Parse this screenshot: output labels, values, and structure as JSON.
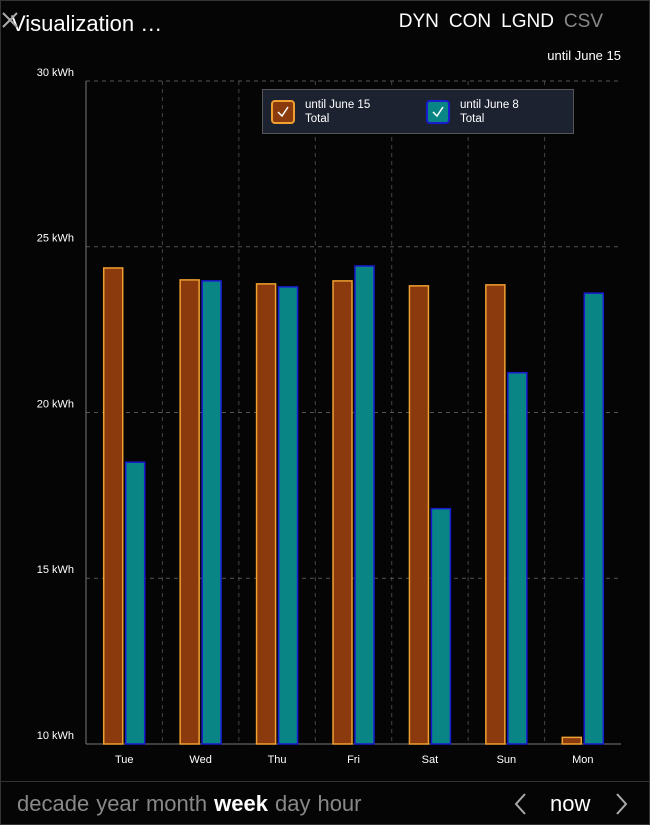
{
  "header": {
    "title": "Visualization …",
    "buttons": [
      "DYN",
      "CON",
      "LGND",
      "CSV"
    ]
  },
  "chart_data": {
    "type": "bar",
    "subtitle": "until June 15",
    "categories": [
      "Tue",
      "Wed",
      "Thu",
      "Fri",
      "Sat",
      "Sun",
      "Mon"
    ],
    "series": [
      {
        "name": "until June 15\nTotal",
        "color": "#8a3a0c",
        "edge": "#f0a030",
        "values": [
          24.36,
          24.0,
          23.88,
          23.97,
          23.82,
          23.85,
          10.2
        ]
      },
      {
        "name": "until June 8\nTotal",
        "color": "#0a8585",
        "edge": "#1a1ad0",
        "values": [
          18.5,
          23.97,
          23.79,
          24.42,
          17.1,
          21.2,
          23.6
        ]
      }
    ],
    "ylim": [
      10,
      30
    ],
    "yticks": [
      {
        "value": 10,
        "label": "10 kWh"
      },
      {
        "value": 15,
        "label": "15 kWh"
      },
      {
        "value": 20,
        "label": "20 kWh"
      },
      {
        "value": 25,
        "label": "25 kWh"
      },
      {
        "value": 30,
        "label": "30 kWh"
      }
    ],
    "grid": true
  },
  "footer": {
    "ranges": [
      "decade",
      "year",
      "month",
      "week",
      "day",
      "hour"
    ],
    "now": "now"
  }
}
